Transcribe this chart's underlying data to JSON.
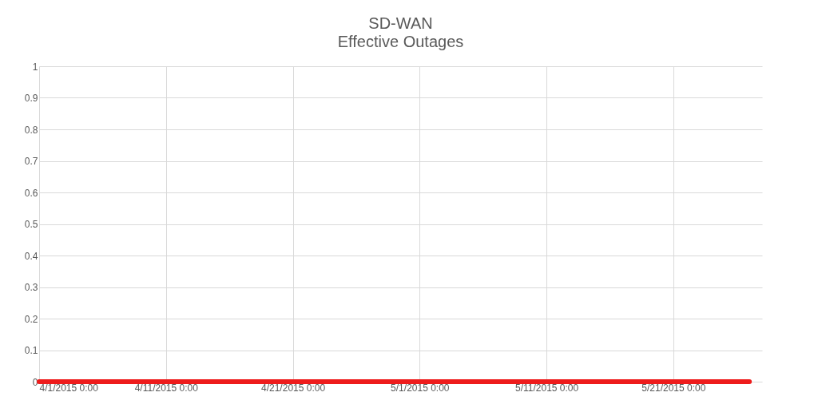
{
  "chart_data": {
    "type": "line",
    "title": "SD-WAN",
    "subtitle": "Effective Outages",
    "x": [
      "2015-04-01",
      "2015-04-08",
      "2015-04-15",
      "2015-04-22",
      "2015-04-29",
      "2015-05-06",
      "2015-05-13",
      "2015-05-20",
      "2015-05-27"
    ],
    "series": [
      {
        "color": "#ee1c1c",
        "values": [
          0,
          0,
          0,
          0,
          0,
          0,
          0,
          0,
          0
        ]
      }
    ],
    "xlim": [
      "2015-04-01",
      "2015-05-28"
    ],
    "xticks": [
      {
        "value": "2015-04-01",
        "label": "4/1/2015 0:00"
      },
      {
        "value": "2015-04-11",
        "label": "4/11/2015 0:00"
      },
      {
        "value": "2015-04-21",
        "label": "4/21/2015 0:00"
      },
      {
        "value": "2015-05-01",
        "label": "5/1/2015 0:00"
      },
      {
        "value": "2015-05-11",
        "label": "5/11/2015 0:00"
      },
      {
        "value": "2015-05-21",
        "label": "5/21/2015 0:00"
      }
    ],
    "ylim": [
      0,
      1
    ],
    "yticks": [
      0,
      0.1,
      0.2,
      0.3,
      0.4,
      0.5,
      0.6,
      0.7,
      0.8,
      0.9,
      1
    ],
    "grid": true,
    "marker": "none",
    "line_style": "solid"
  }
}
